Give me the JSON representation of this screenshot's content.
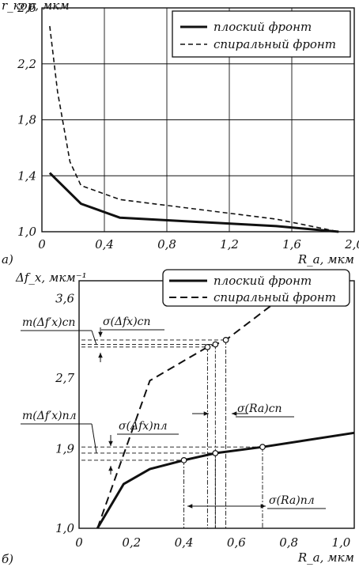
{
  "chart_data": [
    {
      "type": "line",
      "panel_label": "а)",
      "ylabel": "r_кор, мкм",
      "xlabel": "R_a, мкм",
      "xlim": [
        0,
        2.0
      ],
      "ylim": [
        1.0,
        2.6
      ],
      "xticks": [
        "0",
        "0,4",
        "0,8",
        "1,2",
        "1,6",
        "2,0"
      ],
      "yticks": [
        "1,0",
        "1,4",
        "1,8",
        "2,2",
        "2,6"
      ],
      "grid": true,
      "legend_position": "top-right",
      "series": [
        {
          "name": "плоский фронт",
          "style": "solid",
          "x": [
            0.05,
            0.25,
            0.5,
            1.0,
            1.5,
            1.9
          ],
          "y": [
            1.42,
            1.2,
            1.1,
            1.07,
            1.04,
            1.0
          ]
        },
        {
          "name": "спиральный фронт",
          "style": "dashed",
          "x": [
            0.05,
            0.1,
            0.18,
            0.25,
            0.5,
            1.0,
            1.5,
            1.9
          ],
          "y": [
            2.47,
            2.0,
            1.5,
            1.33,
            1.23,
            1.16,
            1.09,
            1.0
          ]
        }
      ]
    },
    {
      "type": "line",
      "panel_label": "б)",
      "ylabel": "Δf_x, мкм⁻¹",
      "xlabel": "R_a, мкм",
      "xlim": [
        0,
        1.05
      ],
      "ylim": [
        1.0,
        3.8
      ],
      "xticks": [
        "0",
        "0,2",
        "0,4",
        "0,6",
        "0,8",
        "1,0"
      ],
      "yticks": [
        "1,0",
        "1,9",
        "2,7",
        "3,6"
      ],
      "legend_position": "top-right",
      "series": [
        {
          "name": "плоский фронт",
          "style": "solid",
          "x": [
            0.07,
            0.17,
            0.27,
            0.4,
            0.52,
            0.7,
            1.05
          ],
          "y": [
            1.0,
            1.5,
            1.67,
            1.77,
            1.85,
            1.92,
            2.08
          ]
        },
        {
          "name": "спиральный фронт",
          "style": "dashed",
          "x": [
            0.07,
            0.27,
            0.49,
            0.52,
            0.56,
            0.8
          ],
          "y": [
            1.0,
            2.67,
            3.05,
            3.08,
            3.13,
            3.67
          ]
        }
      ],
      "markers": [
        {
          "series": "плоский фронт",
          "x": 0.4,
          "y": 1.77
        },
        {
          "series": "плоский фронт",
          "x": 0.52,
          "y": 1.85
        },
        {
          "series": "плоский фронт",
          "x": 0.7,
          "y": 1.92
        },
        {
          "series": "спиральный фронт",
          "x": 0.49,
          "y": 3.05
        },
        {
          "series": "спиральный фронт",
          "x": 0.52,
          "y": 3.08
        },
        {
          "series": "спиральный фронт",
          "x": 0.56,
          "y": 3.13
        }
      ],
      "annotations": {
        "m_sp": "m(Δf′x)сп",
        "sigma_df_sp": "σ(Δfx)сп",
        "m_pl": "m(Δf′x)пл",
        "sigma_df_pl": "σ(Δfx)пл",
        "sigma_ra_sp": "σ(Ra)сп",
        "sigma_ra_pl": "σ(Ra)пл"
      }
    }
  ]
}
